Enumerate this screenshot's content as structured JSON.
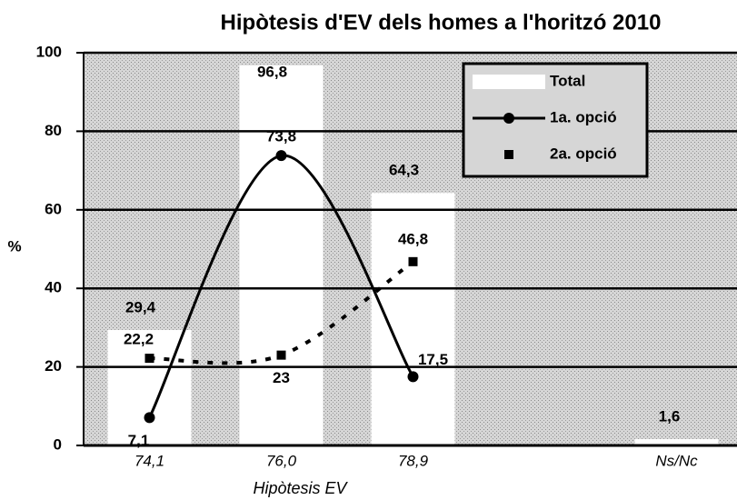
{
  "chart_data": {
    "type": "bar-line",
    "title": "Hipòtesis d'EV dels homes a l'horitzó 2010",
    "x_label": "Hipòtesis EV",
    "y_label": "%",
    "categories": [
      "74,1",
      "76,0",
      "78,9",
      null,
      "Ns/Nc"
    ],
    "series": [
      {
        "name": "Total",
        "type": "bar",
        "color": "#ffffff",
        "values": [
          29.4,
          96.8,
          64.3,
          null,
          1.6
        ],
        "value_labels": [
          "29,4",
          "96,8",
          "64,3",
          null,
          "1,6"
        ]
      },
      {
        "name": "1a. opció",
        "type": "line",
        "style": "solid",
        "marker": "circle",
        "color": "#000000",
        "values": [
          7.1,
          73.8,
          17.5,
          null,
          null
        ],
        "value_labels": [
          "7,1",
          "73,8",
          "17,5",
          null,
          null
        ]
      },
      {
        "name": "2a. opció",
        "type": "line",
        "style": "dotted",
        "marker": "square",
        "color": "#000000",
        "values": [
          22.2,
          23,
          46.8,
          null,
          null
        ],
        "value_labels": [
          "22,2",
          "23",
          "46,8",
          null,
          null
        ]
      }
    ],
    "ylim": [
      0,
      100
    ],
    "yticks": [
      0,
      20,
      40,
      60,
      80,
      100
    ],
    "grid": true,
    "legend": "upper right"
  }
}
